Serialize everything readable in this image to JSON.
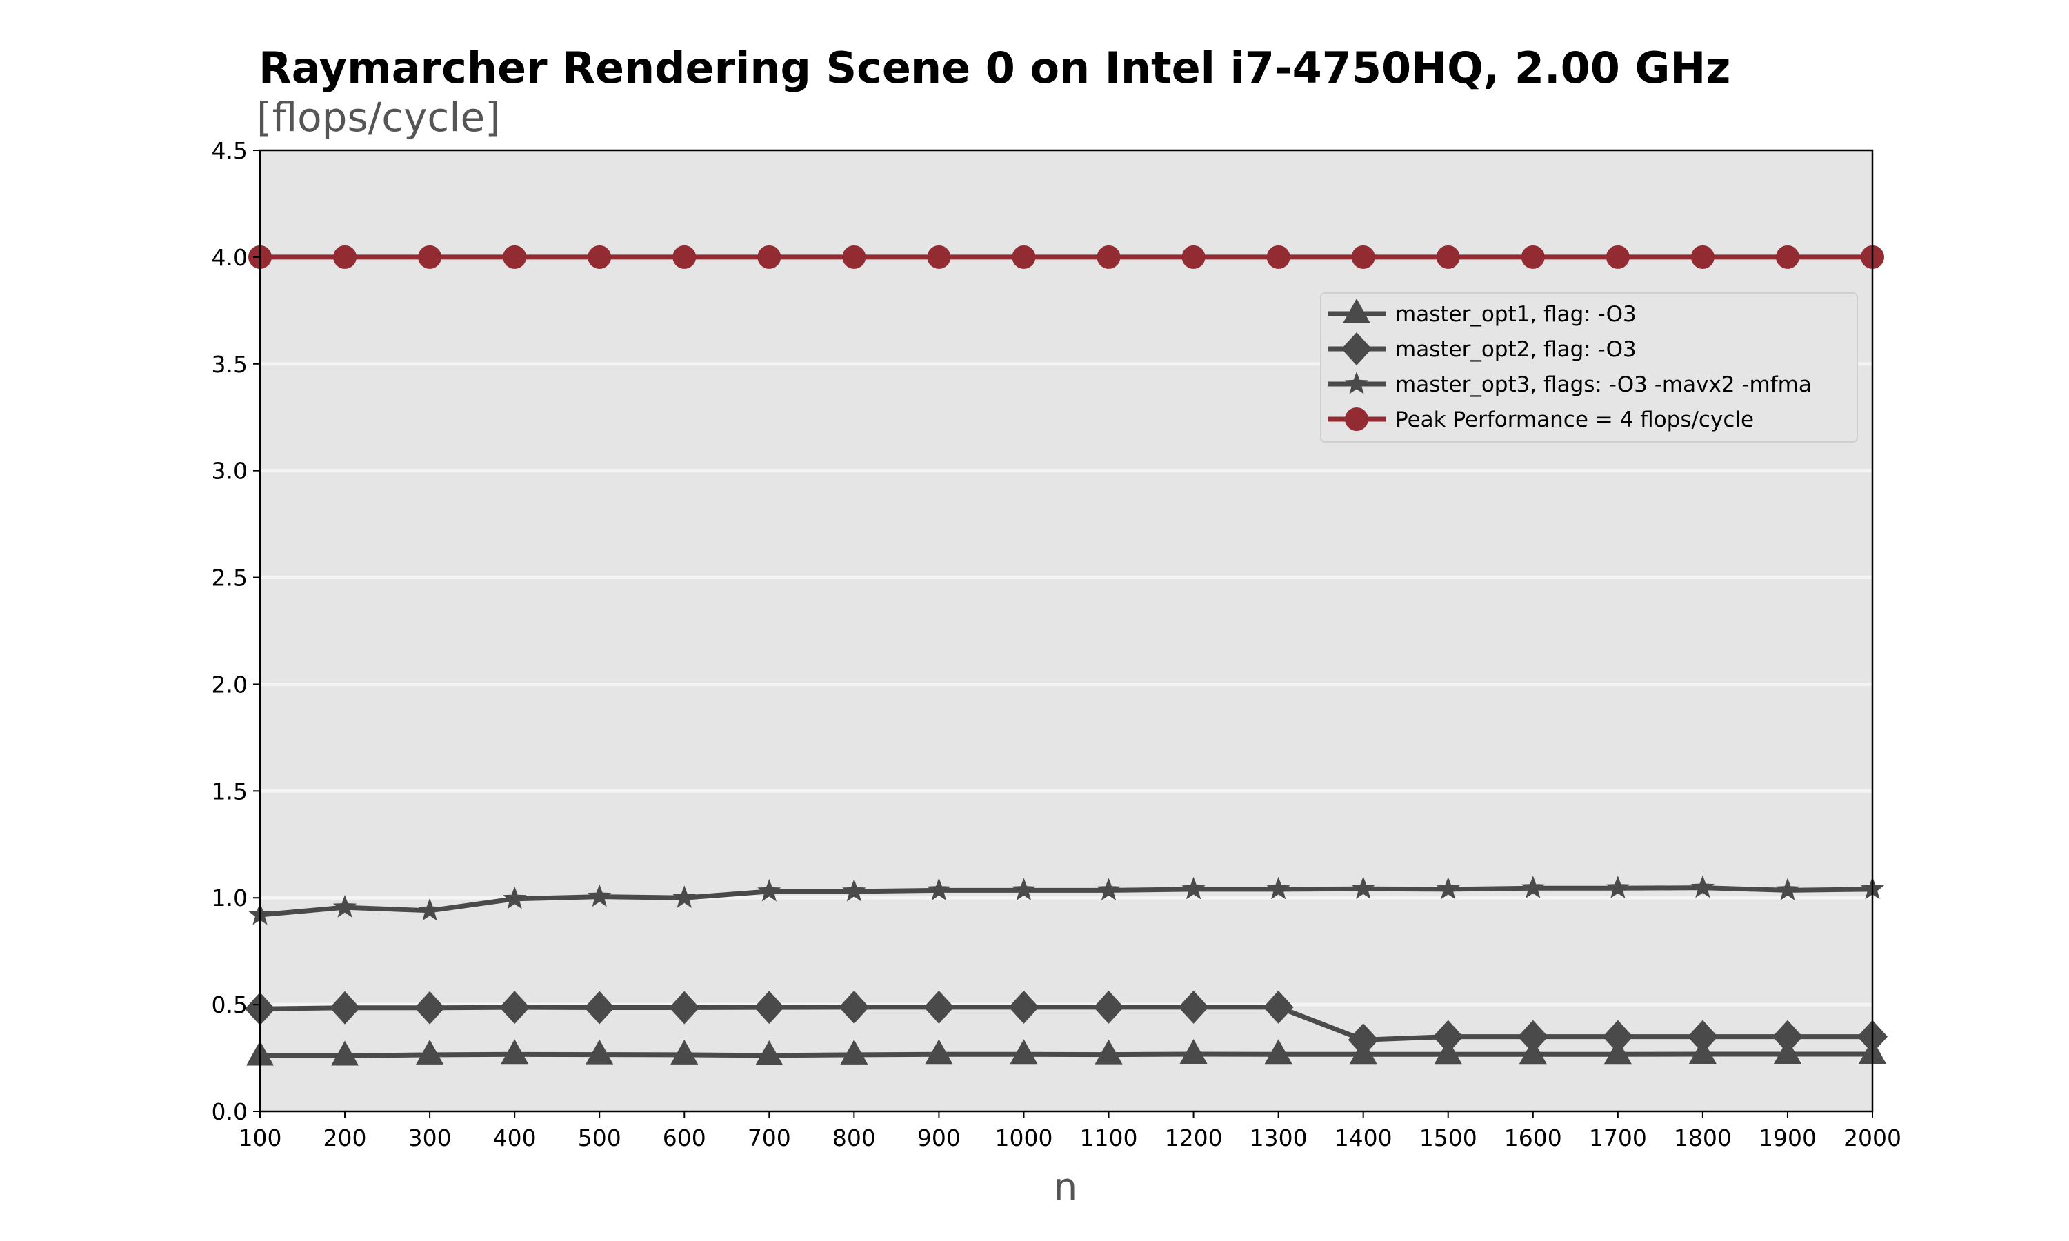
{
  "chart_data": {
    "type": "line",
    "title": "Raymarcher Rendering Scene 0 on Intel i7-4750HQ, 2.00 GHz",
    "ylabel": "[flops/cycle]",
    "xlabel": "n",
    "x": [
      100,
      200,
      300,
      400,
      500,
      600,
      700,
      800,
      900,
      1000,
      1100,
      1200,
      1300,
      1400,
      1500,
      1600,
      1700,
      1800,
      1900,
      2000
    ],
    "xlim": [
      100,
      2000
    ],
    "ylim": [
      0,
      4.5
    ],
    "xticks": [
      "100",
      "200",
      "300",
      "400",
      "500",
      "600",
      "700",
      "800",
      "900",
      "1000",
      "1100",
      "1200",
      "1300",
      "1400",
      "1500",
      "1600",
      "1700",
      "1800",
      "1900",
      "2000"
    ],
    "yticks": [
      "0.0",
      "0.5",
      "1.0",
      "1.5",
      "2.0",
      "2.5",
      "3.0",
      "3.5",
      "4.0",
      "4.5"
    ],
    "grid": "horizontal",
    "legend_position": "upper-right",
    "background": "#e5e5e5",
    "series": [
      {
        "name": "master_opt1, flag: -O3",
        "marker": "triangle",
        "color": "#4a4a4a",
        "values": [
          0.26,
          0.26,
          0.265,
          0.267,
          0.266,
          0.265,
          0.262,
          0.265,
          0.267,
          0.267,
          0.266,
          0.268,
          0.267,
          0.267,
          0.267,
          0.267,
          0.267,
          0.268,
          0.268,
          0.268
        ]
      },
      {
        "name": "master_opt2, flag: -O3",
        "marker": "diamond",
        "color": "#4a4a4a",
        "values": [
          0.48,
          0.485,
          0.485,
          0.487,
          0.486,
          0.486,
          0.487,
          0.488,
          0.488,
          0.488,
          0.488,
          0.488,
          0.488,
          0.335,
          0.35,
          0.35,
          0.35,
          0.35,
          0.35,
          0.35
        ]
      },
      {
        "name": "master_opt3, flags: -O3 -mavx2 -mfma",
        "marker": "star",
        "color": "#4a4a4a",
        "values": [
          0.92,
          0.955,
          0.94,
          0.995,
          1.005,
          1.0,
          1.03,
          1.03,
          1.035,
          1.035,
          1.035,
          1.04,
          1.04,
          1.042,
          1.04,
          1.045,
          1.045,
          1.047,
          1.035,
          1.04
        ]
      },
      {
        "name": "Peak Performance = 4 flops/cycle",
        "marker": "circle",
        "color": "#922b32",
        "values": [
          4,
          4,
          4,
          4,
          4,
          4,
          4,
          4,
          4,
          4,
          4,
          4,
          4,
          4,
          4,
          4,
          4,
          4,
          4,
          4
        ]
      }
    ]
  }
}
